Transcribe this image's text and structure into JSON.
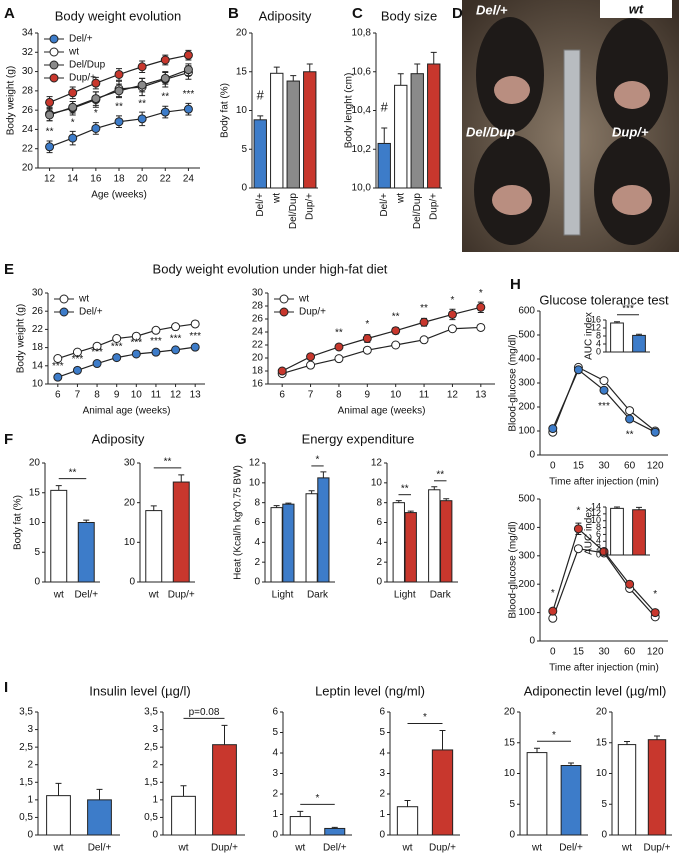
{
  "chart_data": [
    {
      "type": "line",
      "panel": "A",
      "title": "Body weight evolution",
      "xlabel": "Age (weeks)",
      "ylabel": "Body weight (g)",
      "x": [
        12,
        14,
        16,
        18,
        20,
        22,
        24
      ],
      "xlim": [
        11,
        25
      ],
      "xticks": [
        12,
        14,
        16,
        18,
        20,
        22,
        24
      ],
      "ylim": [
        20,
        34
      ],
      "yticks": [
        20,
        22,
        24,
        26,
        28,
        30,
        32,
        34
      ],
      "legend": "upper left",
      "series": [
        {
          "name": "Del/+",
          "color": "#3d7cc9",
          "values": [
            22.2,
            23.1,
            24.1,
            24.8,
            25.1,
            25.8,
            26.1
          ],
          "errors": [
            0.6,
            0.7,
            0.6,
            0.6,
            0.7,
            0.6,
            0.6
          ]
        },
        {
          "name": "wt",
          "color": "#ffffff",
          "values": [
            25.6,
            26.2,
            27.1,
            28.2,
            28.4,
            29.2,
            29.9
          ],
          "errors": [
            0.7,
            0.7,
            0.8,
            0.8,
            0.9,
            0.8,
            0.7
          ]
        },
        {
          "name": "Del/Dup",
          "color": "#8a8a8a",
          "values": [
            25.5,
            26.3,
            27.2,
            28.0,
            28.6,
            29.3,
            30.2
          ],
          "errors": [
            0.6,
            0.6,
            0.7,
            0.7,
            0.7,
            0.6,
            0.6
          ]
        },
        {
          "name": "Dup/+",
          "color": "#c8372d",
          "values": [
            26.8,
            27.8,
            28.8,
            29.7,
            30.5,
            31.2,
            31.7
          ],
          "errors": [
            0.6,
            0.6,
            0.6,
            0.6,
            0.6,
            0.5,
            0.5
          ]
        }
      ],
      "annotations": [
        "**",
        "*",
        "*",
        "**",
        "**",
        "**",
        "***"
      ]
    },
    {
      "type": "bar",
      "panel": "B",
      "title": "Adiposity",
      "ylabel": "Body fat (%)",
      "categories": [
        "Del/+",
        "wt",
        "Del/Dup",
        "Dup/+"
      ],
      "values": [
        8.8,
        14.8,
        13.8,
        15.0
      ],
      "errors": [
        0.5,
        0.8,
        0.7,
        1.0
      ],
      "colors": [
        "#3d7cc9",
        "#ffffff",
        "#8a8a8a",
        "#c8372d"
      ],
      "ylim": [
        0,
        20
      ],
      "yticks": [
        0,
        5,
        10,
        15,
        20
      ],
      "annotations": [
        "#",
        null,
        null,
        null
      ]
    },
    {
      "type": "bar",
      "panel": "C",
      "title": "Body size",
      "ylabel": "Body lenght (cm)",
      "categories": [
        "Del/+",
        "wt",
        "Del/Dup",
        "Dup/+"
      ],
      "values": [
        10.23,
        10.53,
        10.59,
        10.64
      ],
      "errors": [
        0.08,
        0.06,
        0.05,
        0.06
      ],
      "colors": [
        "#3d7cc9",
        "#ffffff",
        "#8a8a8a",
        "#c8372d"
      ],
      "ylim": [
        10.0,
        10.8
      ],
      "yticks": [
        {
          "value": 10.0,
          "label": "10,0"
        },
        {
          "value": 10.2,
          "label": "10,2"
        },
        {
          "value": 10.4,
          "label": "10,4"
        },
        {
          "value": 10.6,
          "label": "10,6"
        },
        {
          "value": 10.8,
          "label": "10,8"
        }
      ],
      "annotations": [
        "#",
        null,
        null,
        null
      ]
    },
    {
      "type": "photo",
      "panel": "D",
      "labels": [
        "Del/+",
        "wt",
        "Del/Dup",
        "Dup/+"
      ]
    },
    {
      "type": "line",
      "panel": "E",
      "title": "Body weight evolution under high-fat diet",
      "xlabel": "Animal age (weeks)",
      "ylabel": "Body weight (g)",
      "x": [
        6,
        7,
        8,
        9,
        10,
        11,
        12,
        13
      ],
      "xlim": [
        5.5,
        13.5
      ],
      "xticks": [
        6,
        7,
        8,
        9,
        10,
        11,
        12,
        13
      ],
      "ylim": [
        10,
        30
      ],
      "yticks": [
        10,
        14,
        18,
        22,
        26,
        30
      ],
      "legend": "upper left",
      "series": [
        {
          "name": "wt",
          "color": "#ffffff",
          "values": [
            15.6,
            17.0,
            18.3,
            20.0,
            20.5,
            21.8,
            22.6,
            23.2
          ],
          "errors": [
            0.5,
            0.3,
            0.3,
            0.5,
            0.5,
            0.5,
            0.6,
            0.6
          ]
        },
        {
          "name": "Del/+",
          "color": "#3d7cc9",
          "values": [
            11.5,
            13.0,
            14.5,
            15.8,
            16.6,
            17.0,
            17.5,
            18.1
          ],
          "errors": [
            0.3,
            0.3,
            0.3,
            0.3,
            0.3,
            0.3,
            0.3,
            0.4
          ]
        }
      ],
      "annotations": [
        "***",
        "***",
        "***",
        "***",
        "***",
        "***",
        "***",
        "***"
      ]
    },
    {
      "type": "line",
      "xlabel": "Animal age (weeks)",
      "x": [
        6,
        7,
        8,
        9,
        10,
        11,
        12,
        13
      ],
      "xlim": [
        5.5,
        13.5
      ],
      "xticks": [
        6,
        7,
        8,
        9,
        10,
        11,
        12,
        13
      ],
      "ylim": [
        16,
        30
      ],
      "yticks": [
        16,
        18,
        20,
        22,
        24,
        26,
        28,
        30
      ],
      "legend": "upper left",
      "series": [
        {
          "name": "wt",
          "color": "#ffffff",
          "values": [
            17.6,
            18.9,
            19.9,
            21.2,
            22.0,
            22.8,
            24.5,
            24.7
          ],
          "errors": [
            0.3,
            0.3,
            0.3,
            0.3,
            0.3,
            0.3,
            0.3,
            0.3
          ]
        },
        {
          "name": "Dup/+",
          "color": "#c8372d",
          "values": [
            18.0,
            20.2,
            21.7,
            23.0,
            24.2,
            25.5,
            26.7,
            27.8
          ],
          "errors": [
            0.4,
            0.4,
            0.4,
            0.6,
            0.5,
            0.6,
            0.8,
            0.8
          ]
        }
      ],
      "annotations": [
        null,
        null,
        "**",
        "*",
        "**",
        "**",
        "*",
        "*"
      ]
    },
    {
      "type": "bar",
      "panel": "F",
      "title": "Adiposity",
      "ylabel": "Body fat (%)",
      "categories": [
        "wt",
        "Del/+"
      ],
      "values": [
        15.4,
        10.0
      ],
      "errors": [
        0.8,
        0.4
      ],
      "colors": [
        "#ffffff",
        "#3d7cc9"
      ],
      "ylim": [
        0,
        20
      ],
      "yticks": [
        0,
        5,
        10,
        15,
        20
      ],
      "bracket": "**"
    },
    {
      "type": "bar",
      "categories": [
        "wt",
        "Dup/+"
      ],
      "values": [
        18.0,
        25.2
      ],
      "errors": [
        1.2,
        1.8
      ],
      "colors": [
        "#ffffff",
        "#c8372d"
      ],
      "ylim": [
        0,
        30
      ],
      "yticks": [
        0,
        10,
        20,
        30
      ],
      "bracket": "**"
    },
    {
      "type": "bar",
      "panel": "G",
      "title": "Energy expenditure",
      "ylabel": "Heat (Kcal/h kg^0.75 BW)",
      "categories": [
        "Light",
        "Dark"
      ],
      "ylim": [
        0,
        12
      ],
      "yticks": [
        0,
        2,
        4,
        6,
        8,
        10,
        12
      ],
      "series": [
        {
          "color": "#ffffff",
          "values": [
            7.5,
            8.9
          ],
          "errors": [
            0.2,
            0.3
          ]
        },
        {
          "color": "#3d7cc9",
          "values": [
            7.85,
            10.5
          ],
          "errors": [
            0.1,
            0.6
          ]
        }
      ],
      "brackets": [
        null,
        "*"
      ]
    },
    {
      "type": "bar",
      "categories": [
        "Light",
        "Dark"
      ],
      "ylim": [
        0,
        12
      ],
      "yticks": [
        0,
        2,
        4,
        6,
        8,
        10,
        12
      ],
      "series": [
        {
          "color": "#ffffff",
          "values": [
            8.0,
            9.3
          ],
          "errors": [
            0.2,
            0.3
          ]
        },
        {
          "color": "#c8372d",
          "values": [
            7.0,
            8.2
          ],
          "errors": [
            0.15,
            0.2
          ]
        }
      ],
      "brackets": [
        "**",
        "**"
      ]
    },
    {
      "type": "line",
      "panel": "H",
      "title": "Glucose tolerance test",
      "xlabel": "Time after injection (min)",
      "ylabel": "Blood-glucose (mg/dl)",
      "categories": [
        "0",
        "15",
        "30",
        "60",
        "120"
      ],
      "ylim": [
        0,
        600
      ],
      "yticks": [
        0,
        100,
        200,
        300,
        400,
        500,
        600
      ],
      "series": [
        {
          "color": "#ffffff",
          "values": [
            95,
            365,
            310,
            185,
            100
          ]
        },
        {
          "color": "#3d7cc9",
          "values": [
            110,
            355,
            270,
            150,
            95
          ]
        }
      ],
      "annotations": [
        null,
        null,
        "***",
        "**",
        null
      ]
    },
    {
      "type": "bar",
      "ylabel": "AUC index",
      "categories": [
        null,
        null
      ],
      "values": [
        14.5,
        8.3
      ],
      "errors": [
        0.6,
        0.6
      ],
      "colors": [
        "#ffffff",
        "#3d7cc9"
      ],
      "ylim": [
        0,
        16
      ],
      "yticks": [
        0,
        4,
        8,
        12,
        16
      ],
      "bracket": "***"
    },
    {
      "type": "line",
      "xlabel": "Time after injection (min)",
      "ylabel": "Blood-glucose (mg/dl)",
      "categories": [
        "0",
        "15",
        "30",
        "60",
        "120"
      ],
      "ylim": [
        0,
        500
      ],
      "yticks": [
        0,
        100,
        200,
        300,
        400,
        500
      ],
      "series": [
        {
          "color": "#ffffff",
          "values": [
            80,
            325,
            310,
            185,
            85
          ]
        },
        {
          "color": "#c8372d",
          "values": [
            105,
            395,
            315,
            200,
            100
          ],
          "errors": [
            10,
            20,
            10,
            10,
            10
          ]
        }
      ],
      "annotations": [
        "*",
        "*",
        null,
        null,
        "*"
      ]
    },
    {
      "type": "bar",
      "ylabel": "AUC index",
      "categories": [
        null,
        null
      ],
      "values": [
        13.6,
        13.2
      ],
      "errors": [
        0.4,
        0.7
      ],
      "colors": [
        "#ffffff",
        "#c8372d"
      ],
      "ylim": [
        0,
        14
      ],
      "yticks": [
        0,
        2,
        4,
        6,
        8,
        10,
        12,
        14
      ]
    },
    {
      "type": "bar",
      "panel": "I",
      "title": "Insulin level (µg/l)",
      "categories": [
        "wt",
        "Del/+"
      ],
      "values": [
        1.12,
        1.0
      ],
      "errors": [
        0.35,
        0.3
      ],
      "colors": [
        "#ffffff",
        "#3d7cc9"
      ],
      "ylim": [
        0,
        3.5
      ],
      "yticks": [
        0,
        {
          "value": 0.5,
          "label": "0,5"
        },
        1,
        {
          "value": 1.5,
          "label": "1,5"
        },
        2,
        {
          "value": 2.5,
          "label": "2,5"
        },
        3,
        {
          "value": 3.5,
          "label": "3,5"
        }
      ]
    },
    {
      "type": "bar",
      "categories": [
        "wt",
        "Dup/+"
      ],
      "values": [
        1.1,
        2.57
      ],
      "errors": [
        0.3,
        0.55
      ],
      "colors": [
        "#ffffff",
        "#c8372d"
      ],
      "ylim": [
        0,
        3.5
      ],
      "yticks": [
        0,
        {
          "value": 0.5,
          "label": "0,5"
        },
        1,
        {
          "value": 1.5,
          "label": "1,5"
        },
        2,
        {
          "value": 2.5,
          "label": "2,5"
        },
        3,
        {
          "value": 3.5,
          "label": "3,5"
        }
      ],
      "bracket": "p=0.08"
    },
    {
      "type": "bar",
      "title": "Leptin level (ng/ml)",
      "categories": [
        "wt",
        "Del/+"
      ],
      "values": [
        0.9,
        0.32
      ],
      "errors": [
        0.25,
        0.05
      ],
      "colors": [
        "#ffffff",
        "#3d7cc9"
      ],
      "ylim": [
        0,
        6
      ],
      "yticks": [
        0,
        1,
        2,
        3,
        4,
        5,
        6
      ],
      "bracket": "*"
    },
    {
      "type": "bar",
      "categories": [
        "wt",
        "Dup/+"
      ],
      "values": [
        1.38,
        4.15
      ],
      "errors": [
        0.3,
        0.95
      ],
      "colors": [
        "#ffffff",
        "#c8372d"
      ],
      "ylim": [
        0,
        6
      ],
      "yticks": [
        0,
        1,
        2,
        3,
        4,
        5,
        6
      ],
      "bracket": "*"
    },
    {
      "type": "bar",
      "title": "Adiponectin level (µg/ml)",
      "categories": [
        "wt",
        "Del/+"
      ],
      "values": [
        13.4,
        11.3
      ],
      "errors": [
        0.7,
        0.4
      ],
      "colors": [
        "#ffffff",
        "#3d7cc9"
      ],
      "ylim": [
        0,
        20
      ],
      "yticks": [
        0,
        5,
        10,
        15,
        20
      ],
      "bracket": "*"
    },
    {
      "type": "bar",
      "categories": [
        "wt",
        "Dup/+"
      ],
      "values": [
        14.7,
        15.5
      ],
      "errors": [
        0.5,
        0.6
      ],
      "colors": [
        "#ffffff",
        "#c8372d"
      ],
      "ylim": [
        0,
        20
      ],
      "yticks": [
        0,
        5,
        10,
        15,
        20
      ]
    }
  ]
}
